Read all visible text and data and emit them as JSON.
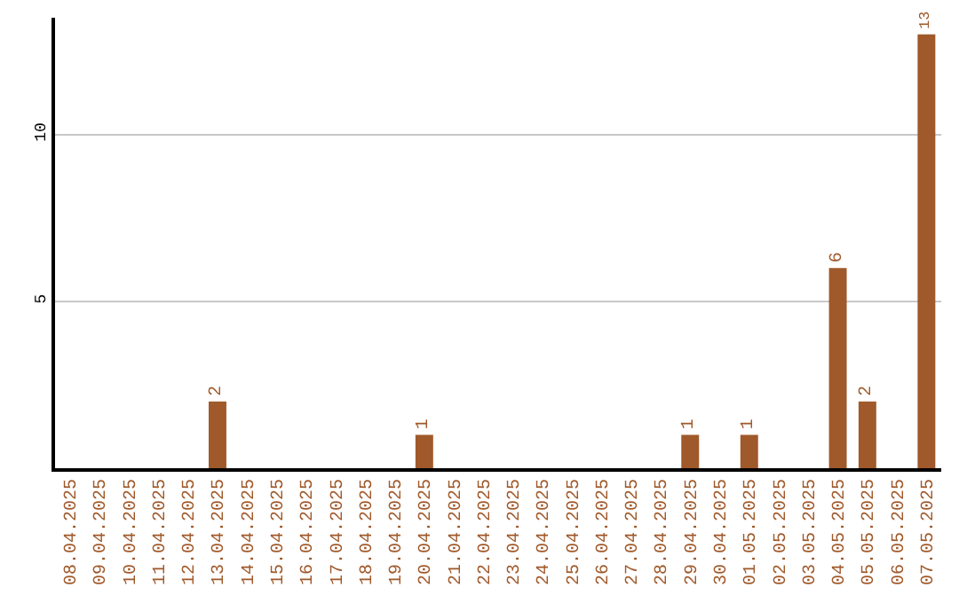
{
  "chart_data": {
    "type": "bar",
    "categories": [
      "08.04.2025",
      "09.04.2025",
      "10.04.2025",
      "11.04.2025",
      "12.04.2025",
      "13.04.2025",
      "14.04.2025",
      "15.04.2025",
      "16.04.2025",
      "17.04.2025",
      "18.04.2025",
      "19.04.2025",
      "20.04.2025",
      "21.04.2025",
      "22.04.2025",
      "23.04.2025",
      "24.04.2025",
      "25.04.2025",
      "26.04.2025",
      "27.04.2025",
      "28.04.2025",
      "29.04.2025",
      "30.04.2025",
      "01.05.2025",
      "02.05.2025",
      "03.05.2025",
      "04.05.2025",
      "05.05.2025",
      "06.05.2025",
      "07.05.2025"
    ],
    "values": [
      0,
      0,
      0,
      0,
      0,
      2,
      0,
      0,
      0,
      0,
      0,
      0,
      1,
      0,
      0,
      0,
      0,
      0,
      0,
      0,
      0,
      1,
      0,
      1,
      0,
      0,
      6,
      2,
      0,
      13
    ],
    "value_labels": [
      null,
      null,
      null,
      null,
      null,
      "2",
      null,
      null,
      null,
      null,
      null,
      null,
      "1",
      null,
      null,
      null,
      null,
      null,
      null,
      null,
      null,
      "1",
      null,
      "1",
      null,
      null,
      "6",
      "2",
      null,
      "13"
    ],
    "color": "#a0592a",
    "ylim": [
      0,
      13.5
    ],
    "yticks": [
      5,
      10
    ],
    "grid": "y"
  }
}
